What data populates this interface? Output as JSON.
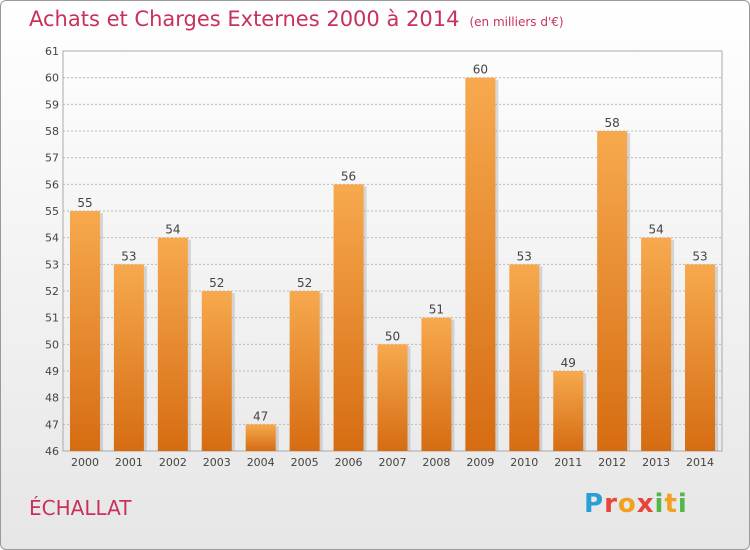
{
  "colors": {
    "bar_top": "#f7a94e",
    "bar_bottom": "#d66c12",
    "title": "#c8325a",
    "grid": "#bbbbbb"
  },
  "chart_data": {
    "type": "bar",
    "title": "Achats et Charges Externes 2000 à 2014",
    "subtitle": "(en milliers d'€)",
    "categories": [
      "2000",
      "2001",
      "2002",
      "2003",
      "2004",
      "2005",
      "2006",
      "2007",
      "2008",
      "2009",
      "2010",
      "2011",
      "2012",
      "2013",
      "2014"
    ],
    "values": [
      55,
      53,
      54,
      52,
      47,
      52,
      56,
      50,
      51,
      60,
      53,
      49,
      58,
      54,
      53
    ],
    "ylim": [
      46,
      61
    ],
    "yticks": [
      46,
      47,
      48,
      49,
      50,
      51,
      52,
      53,
      54,
      55,
      56,
      57,
      58,
      59,
      60,
      61
    ],
    "grid": true,
    "legend": "none"
  },
  "footer": {
    "town": "ÉCHALLAT",
    "logo_letters": [
      {
        "ch": "P",
        "color": "#2a9fd6"
      },
      {
        "ch": "r",
        "color": "#e8443a"
      },
      {
        "ch": "o",
        "color": "#f3a11a"
      },
      {
        "ch": "x",
        "color": "#e8443a"
      },
      {
        "ch": "i",
        "color": "#52b848"
      },
      {
        "ch": "t",
        "color": "#f3a11a"
      },
      {
        "ch": "i",
        "color": "#52b848"
      }
    ]
  }
}
